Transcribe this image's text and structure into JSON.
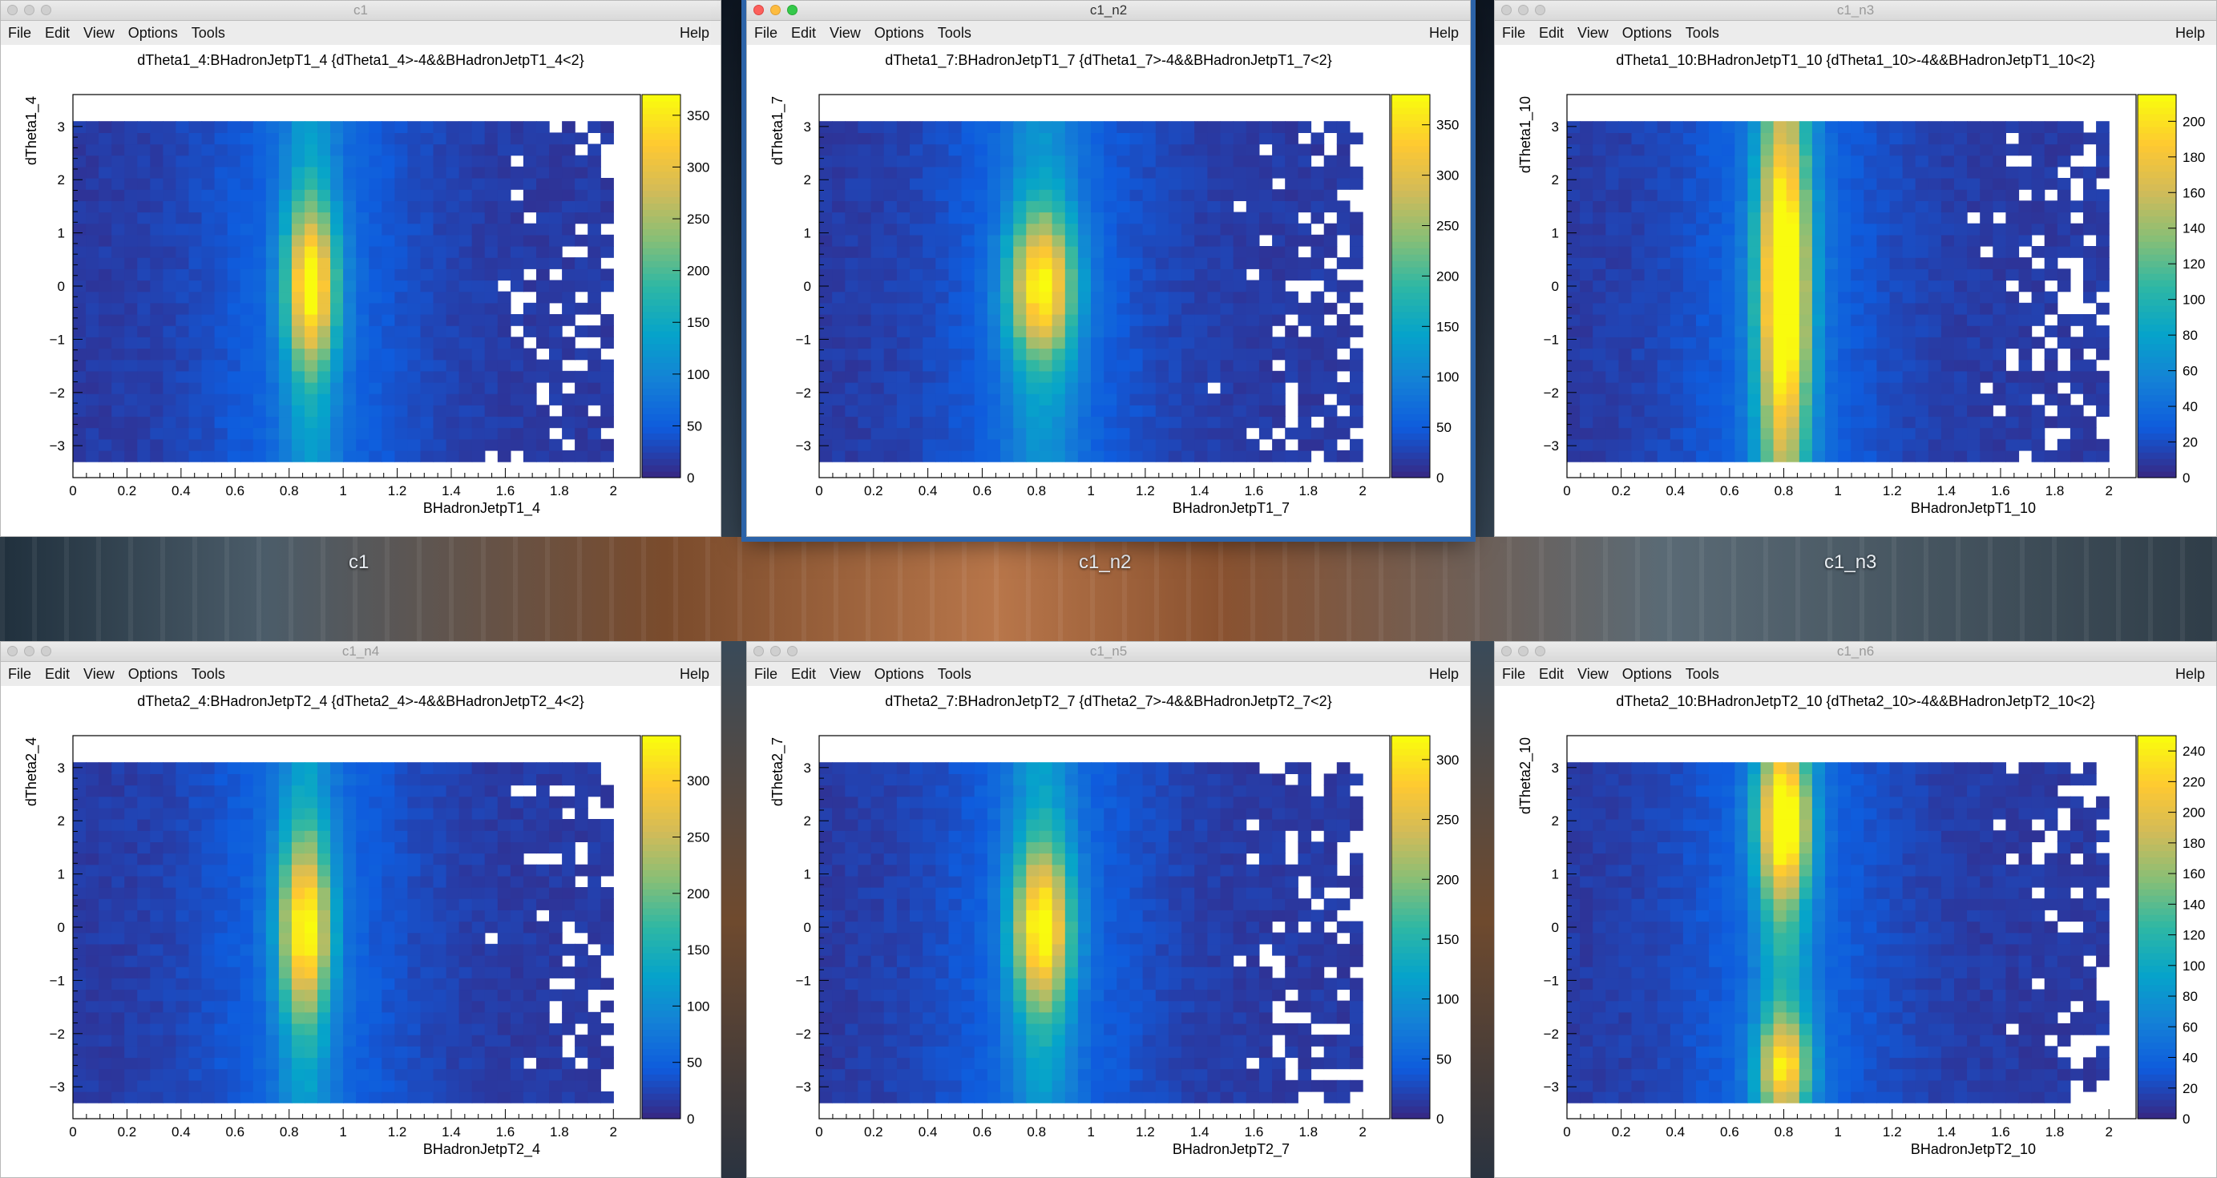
{
  "desktop": {
    "labels": [
      "c1",
      "c1_n2",
      "c1_n3"
    ]
  },
  "menu": {
    "file": "File",
    "edit": "Edit",
    "view": "View",
    "options": "Options",
    "tools": "Tools",
    "help": "Help"
  },
  "colors": {
    "palette": [
      "#352a87",
      "#0f5cdd",
      "#1481d6",
      "#06a4ca",
      "#2eb7a4",
      "#87bf77",
      "#d1bb59",
      "#fec832",
      "#f9fb0e"
    ],
    "active_window_border": "#2c63a8"
  },
  "windows": [
    {
      "title": "c1",
      "active": false,
      "plot_title": "dTheta1_4:BHadronJetpT1_4 {dTheta1_4>-4&&BHadronJetpT1_4<2}",
      "xlabel": "BHadronJetpT1_4",
      "ylabel": "dTheta1_4",
      "x_ticks": [
        "0",
        "0.2",
        "0.4",
        "0.6",
        "0.8",
        "1",
        "1.2",
        "1.4",
        "1.6",
        "1.8",
        "2"
      ],
      "y_ticks": [
        "3",
        "2",
        "1",
        "0",
        "−1",
        "−2",
        "−3"
      ],
      "z_ticks": [
        "350",
        "300",
        "250",
        "200",
        "150",
        "100",
        "50",
        "0"
      ],
      "zmax": 370,
      "peak": {
        "x": 0.88,
        "y": 0.0,
        "sx": 0.07,
        "sy": 1.1,
        "band": 0.3
      },
      "seed": 11
    },
    {
      "title": "c1_n2",
      "active": true,
      "plot_title": "dTheta1_7:BHadronJetpT1_7 {dTheta1_7>-4&&BHadronJetpT1_7<2}",
      "xlabel": "BHadronJetpT1_7",
      "ylabel": "dTheta1_7",
      "x_ticks": [
        "0",
        "0.2",
        "0.4",
        "0.6",
        "0.8",
        "1",
        "1.2",
        "1.4",
        "1.6",
        "1.8",
        "2"
      ],
      "y_ticks": [
        "3",
        "2",
        "1",
        "0",
        "−1",
        "−2",
        "−3"
      ],
      "z_ticks": [
        "350",
        "300",
        "250",
        "200",
        "150",
        "100",
        "50",
        "0"
      ],
      "zmax": 380,
      "peak": {
        "x": 0.82,
        "y": 0.0,
        "sx": 0.09,
        "sy": 1.0,
        "band": 0.25
      },
      "seed": 23
    },
    {
      "title": "c1_n3",
      "active": false,
      "plot_title": "dTheta1_10:BHadronJetpT1_10 {dTheta1_10>-4&&BHadronJetpT1_10<2}",
      "xlabel": "BHadronJetpT1_10",
      "ylabel": "dTheta1_10",
      "x_ticks": [
        "0",
        "0.2",
        "0.4",
        "0.6",
        "0.8",
        "1",
        "1.2",
        "1.4",
        "1.6",
        "1.8",
        "2"
      ],
      "y_ticks": [
        "3",
        "2",
        "1",
        "0",
        "−1",
        "−2",
        "−3"
      ],
      "z_ticks": [
        "200",
        "180",
        "160",
        "140",
        "120",
        "100",
        "80",
        "60",
        "40",
        "20",
        "0"
      ],
      "zmax": 215,
      "peak": {
        "x": 0.8,
        "y": 0.0,
        "sx": 0.07,
        "sy": 2.2,
        "band": 0.55
      },
      "seed": 37
    },
    {
      "title": "c1_n4",
      "active": false,
      "plot_title": "dTheta2_4:BHadronJetpT2_4 {dTheta2_4>-4&&BHadronJetpT2_4<2}",
      "xlabel": "BHadronJetpT2_4",
      "ylabel": "dTheta2_4",
      "x_ticks": [
        "0",
        "0.2",
        "0.4",
        "0.6",
        "0.8",
        "1",
        "1.2",
        "1.4",
        "1.6",
        "1.8",
        "2"
      ],
      "y_ticks": [
        "3",
        "2",
        "1",
        "0",
        "−1",
        "−2",
        "−3"
      ],
      "z_ticks": [
        "300",
        "250",
        "200",
        "150",
        "100",
        "50",
        "0"
      ],
      "zmax": 340,
      "peak": {
        "x": 0.86,
        "y": 0.0,
        "sx": 0.07,
        "sy": 1.2,
        "band": 0.3
      },
      "seed": 51
    },
    {
      "title": "c1_n5",
      "active": false,
      "plot_title": "dTheta2_7:BHadronJetpT2_7 {dTheta2_7>-4&&BHadronJetpT2_7<2}",
      "xlabel": "BHadronJetpT2_7",
      "ylabel": "dTheta2_7",
      "x_ticks": [
        "0",
        "0.2",
        "0.4",
        "0.6",
        "0.8",
        "1",
        "1.2",
        "1.4",
        "1.6",
        "1.8",
        "2"
      ],
      "y_ticks": [
        "3",
        "2",
        "1",
        "0",
        "−1",
        "−2",
        "−3"
      ],
      "z_ticks": [
        "300",
        "250",
        "200",
        "150",
        "100",
        "50",
        "0"
      ],
      "zmax": 320,
      "peak": {
        "x": 0.82,
        "y": 0.0,
        "sx": 0.08,
        "sy": 1.1,
        "band": 0.3
      },
      "seed": 67
    },
    {
      "title": "c1_n6",
      "active": false,
      "plot_title": "dTheta2_10:BHadronJetpT2_10 {dTheta2_10>-4&&BHadronJetpT2_10<2}",
      "xlabel": "BHadronJetpT2_10",
      "ylabel": "dTheta2_10",
      "x_ticks": [
        "0",
        "0.2",
        "0.4",
        "0.6",
        "0.8",
        "1",
        "1.2",
        "1.4",
        "1.6",
        "1.8",
        "2"
      ],
      "y_ticks": [
        "3",
        "2",
        "1",
        "0",
        "−1",
        "−2",
        "−3"
      ],
      "z_ticks": [
        "240",
        "220",
        "200",
        "180",
        "160",
        "140",
        "120",
        "100",
        "80",
        "60",
        "40",
        "20",
        "0"
      ],
      "zmax": 250,
      "peak": {
        "x": 0.8,
        "y": 2.0,
        "sx": 0.07,
        "sy": 1.0,
        "band": 0.5,
        "y2": -2.6
      },
      "seed": 83
    }
  ]
}
